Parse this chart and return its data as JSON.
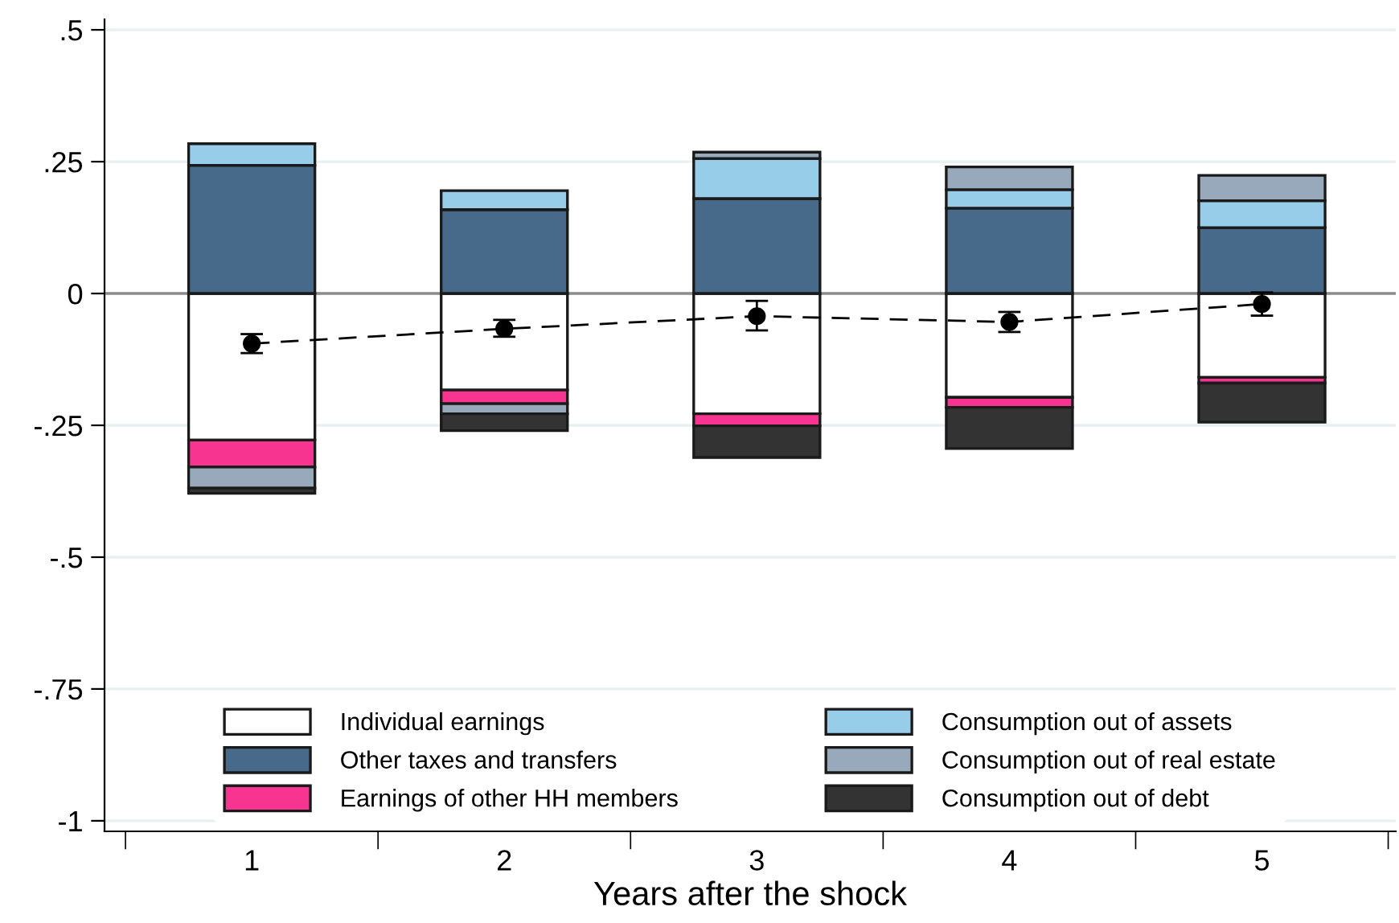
{
  "chart_data": {
    "type": "bar",
    "stacked": true,
    "xlabel": "Years after the shock",
    "categories": [
      "1",
      "2",
      "3",
      "4",
      "5"
    ],
    "series": [
      {
        "name": "Individual earnings",
        "color": "#ffffff",
        "values": [
          -0.278,
          -0.183,
          -0.228,
          -0.197,
          -0.159
        ]
      },
      {
        "name": "Other taxes and transfers",
        "color": "#476a8a",
        "values": [
          0.243,
          0.159,
          0.18,
          0.162,
          0.125
        ]
      },
      {
        "name": "Earnings of other HH members",
        "color": "#f7348f",
        "values": [
          -0.051,
          -0.026,
          -0.023,
          -0.019,
          -0.011
        ]
      },
      {
        "name": "Consumption out of assets",
        "color": "#98cde9",
        "values": [
          0.041,
          0.036,
          0.076,
          0.035,
          0.051
        ]
      },
      {
        "name": "Consumption out of real estate",
        "color": "#97a9ba",
        "values": [
          -0.04,
          -0.019,
          0.012,
          0.043,
          0.048
        ]
      },
      {
        "name": "Consumption out of debt",
        "color": "#333333",
        "values": [
          -0.01,
          -0.032,
          -0.06,
          -0.078,
          -0.074
        ]
      },
      {
        "type": "line",
        "color": "#000000",
        "marker": "circle",
        "line_style": "dashed",
        "values": [
          -0.095,
          -0.067,
          -0.043,
          -0.054,
          -0.02
        ],
        "errors": [
          [
            -0.113,
            -0.077
          ],
          [
            -0.082,
            -0.05
          ],
          [
            -0.07,
            -0.014
          ],
          [
            -0.073,
            -0.035
          ],
          [
            -0.042,
            0.002
          ]
        ]
      }
    ],
    "ylim": [
      -1.02,
      0.52
    ],
    "yticks": [
      {
        "value": -1,
        "label": "-1"
      },
      {
        "value": -0.75,
        "label": "-.75"
      },
      {
        "value": -0.5,
        "label": "-.5"
      },
      {
        "value": -0.25,
        "label": "-.25"
      },
      {
        "value": 0,
        "label": "0"
      },
      {
        "value": 0.25,
        "label": ".25"
      },
      {
        "value": 0.5,
        "label": ".5"
      }
    ],
    "grid": "y",
    "legend": "bottom",
    "ref_lines": [
      {
        "axis": "y",
        "value": 0,
        "color": "#8c8c8c"
      }
    ]
  }
}
